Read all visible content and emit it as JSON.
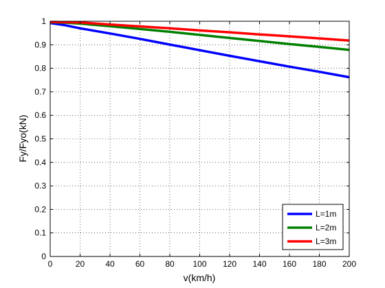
{
  "chart_data": {
    "type": "line",
    "title": "",
    "xlabel": "v(km/h)",
    "ylabel": "Fy/Fyo(kN)",
    "xlim": [
      0,
      200
    ],
    "ylim": [
      0,
      1
    ],
    "xticks": [
      0,
      20,
      40,
      60,
      80,
      100,
      120,
      140,
      160,
      180,
      200
    ],
    "yticks": [
      0,
      0.1,
      0.2,
      0.3,
      0.4,
      0.5,
      0.6,
      0.7,
      0.8,
      0.9,
      1
    ],
    "grid": true,
    "legend_position": "bottom-right",
    "x": [
      0,
      10,
      20,
      40,
      60,
      80,
      100,
      120,
      140,
      160,
      180,
      200
    ],
    "series": [
      {
        "name": "L=1m",
        "color": "#0000ff",
        "values": [
          0.992,
          0.983,
          0.97,
          0.948,
          0.925,
          0.901,
          0.877,
          0.853,
          0.83,
          0.807,
          0.785,
          0.762
        ]
      },
      {
        "name": "L=2m",
        "color": "#008000",
        "values": [
          0.996,
          0.994,
          0.99,
          0.979,
          0.967,
          0.955,
          0.942,
          0.929,
          0.916,
          0.903,
          0.891,
          0.878
        ]
      },
      {
        "name": "L=3m",
        "color": "#ff0000",
        "values": [
          0.997,
          0.996,
          0.995,
          0.986,
          0.978,
          0.97,
          0.961,
          0.953,
          0.944,
          0.936,
          0.927,
          0.918
        ]
      }
    ]
  }
}
